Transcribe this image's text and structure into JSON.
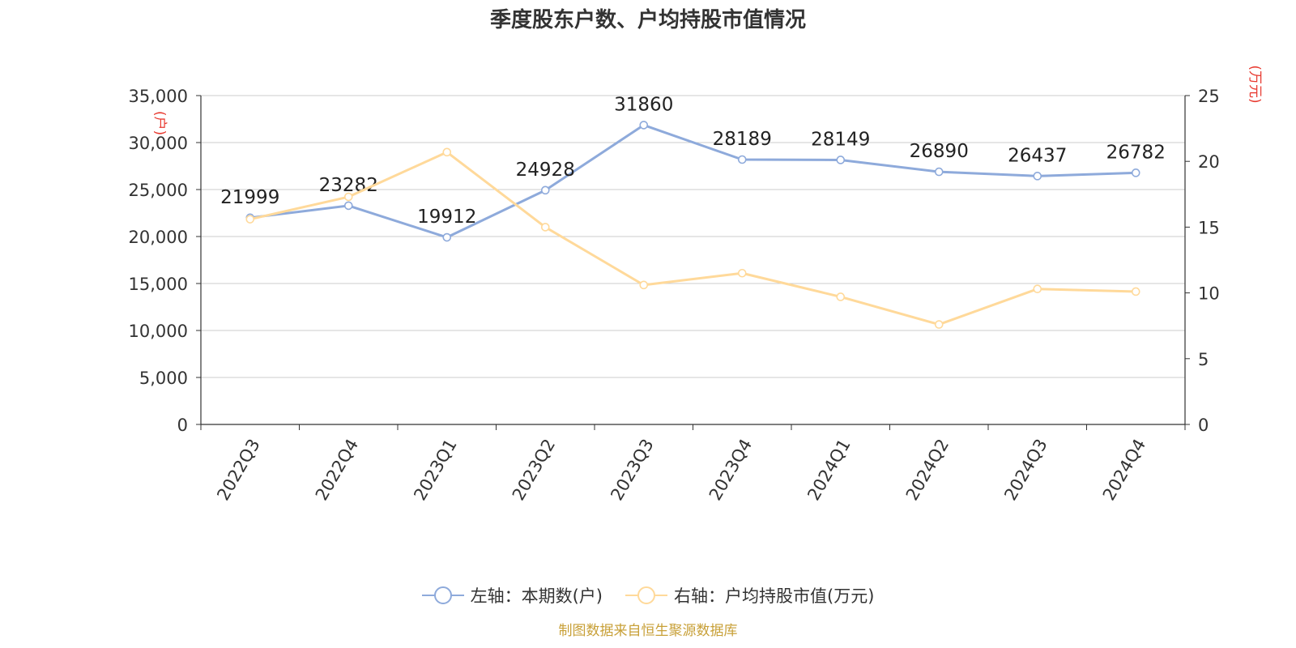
{
  "title": "季度股东户数、户均持股市值情况",
  "source": "制图数据来自恒生聚源数据库",
  "colors": {
    "left_series": "#8eaadb",
    "right_series": "#ffd99a",
    "axis_unit": "#e8392f",
    "source": "#c8a038"
  },
  "chart_data": {
    "type": "line",
    "categories": [
      "2022Q3",
      "2022Q4",
      "2023Q1",
      "2023Q2",
      "2023Q3",
      "2023Q4",
      "2024Q1",
      "2024Q2",
      "2024Q3",
      "2024Q4"
    ],
    "y_left": {
      "unit": "(户)",
      "min": 0,
      "max": 35000,
      "step": 5000,
      "ticks": [
        "0",
        "5,000",
        "10,000",
        "15,000",
        "20,000",
        "25,000",
        "30,000",
        "35,000"
      ]
    },
    "y_right": {
      "unit": "(万元)",
      "min": 0,
      "max": 25,
      "step": 5,
      "ticks": [
        "0",
        "5",
        "10",
        "15",
        "20",
        "25"
      ]
    },
    "series": [
      {
        "name": "左轴：本期数(户)",
        "axis": "left",
        "values": [
          21999,
          23282,
          19912,
          24928,
          31860,
          28189,
          28149,
          26890,
          26437,
          26782
        ],
        "labels": [
          "21999",
          "23282",
          "19912",
          "24928",
          "31860",
          "28189",
          "28149",
          "26890",
          "26437",
          "26782"
        ]
      },
      {
        "name": "右轴：户均持股市值(万元)",
        "axis": "right",
        "values": [
          15.6,
          17.3,
          20.7,
          15.0,
          10.6,
          11.5,
          9.7,
          7.6,
          10.3,
          10.1
        ]
      }
    ],
    "grid": true,
    "legend_position": "bottom"
  }
}
